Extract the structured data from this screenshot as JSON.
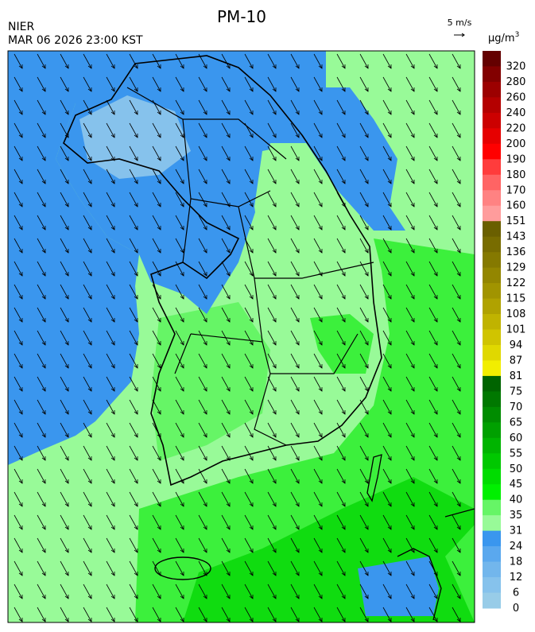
{
  "header": {
    "title": "PM-10",
    "agency": "NIER",
    "timestamp": "MAR 06 2026 23:00 KST",
    "wind_scale": "5 m/s",
    "unit": "µg/m",
    "unit_power": "3"
  },
  "legend": {
    "levels": [
      320,
      280,
      260,
      240,
      220,
      200,
      190,
      180,
      170,
      160,
      151,
      143,
      136,
      129,
      122,
      115,
      108,
      101,
      94,
      87,
      81,
      75,
      70,
      65,
      60,
      55,
      50,
      45,
      40,
      35,
      31,
      24,
      18,
      12,
      6,
      0
    ],
    "colors": [
      "#640000",
      "#820000",
      "#9c0000",
      "#b40000",
      "#cc0000",
      "#e60000",
      "#ff0000",
      "#ff3c3c",
      "#ff6464",
      "#ff8282",
      "#ff9c9c",
      "#6a5f00",
      "#786c00",
      "#857900",
      "#938600",
      "#a19400",
      "#b0a200",
      "#c0b300",
      "#d0c400",
      "#e0d800",
      "#f2ee00",
      "#006400",
      "#007800",
      "#008c00",
      "#00a000",
      "#00b400",
      "#00c800",
      "#00dc00",
      "#00f000",
      "#66f566",
      "#98fa98",
      "#3a96ee",
      "#5aa8ee",
      "#72b6ec",
      "#86c2ec",
      "#98cce8"
    ]
  }
}
